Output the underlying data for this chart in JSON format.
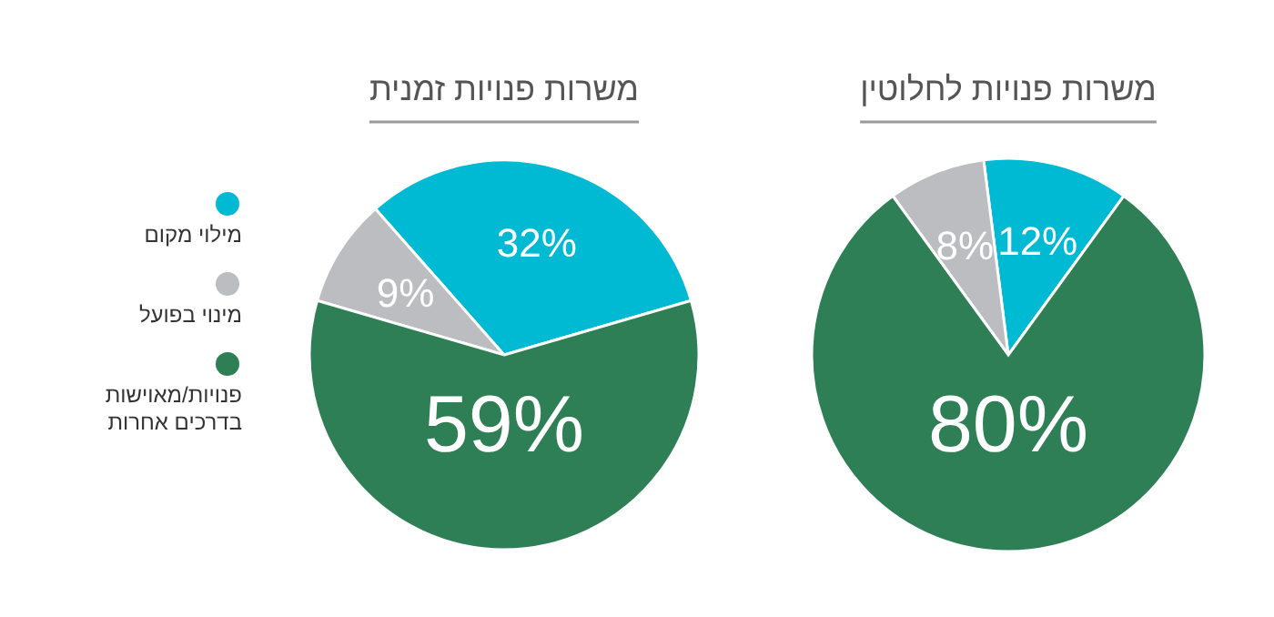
{
  "chart_data": [
    {
      "type": "pie",
      "title": "משרות פנויות לחלוטין",
      "values": [
        12,
        8,
        80
      ],
      "colors": [
        "#00b9d3",
        "#bcbdc0",
        "#2e7f55"
      ],
      "value_labels": [
        "12%",
        "8%",
        "80%"
      ]
    },
    {
      "type": "pie",
      "title": "משרות פנויות זמנית",
      "categories": [
        "מילוי מקום",
        "מינוי בפועל",
        "פנויות/מאוישות בדרכים אחרות"
      ],
      "values": [
        32,
        9,
        59
      ],
      "colors": [
        "#00b9d3",
        "#bcbdc0",
        "#2e7f55"
      ],
      "value_labels": [
        "32%",
        "9%",
        "59%"
      ],
      "legend": "left"
    }
  ]
}
